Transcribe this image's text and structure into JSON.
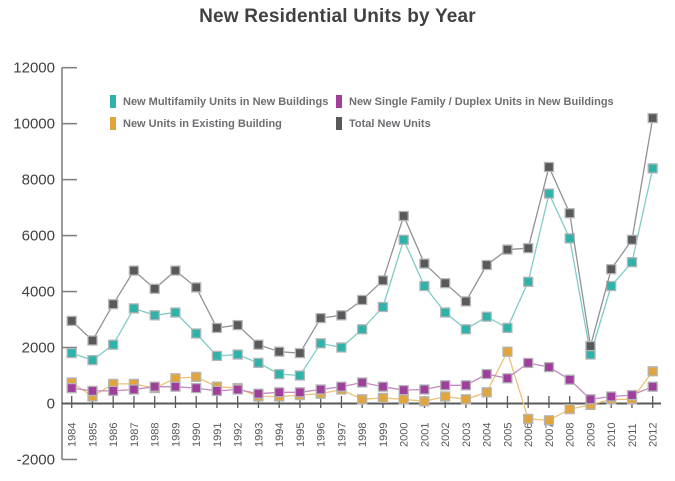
{
  "title": "New Residential Units by Year",
  "chart_data": {
    "type": "line",
    "title": "New Residential Units by Year",
    "xlabel": "",
    "ylabel": "",
    "ylim": [
      -2000,
      12000
    ],
    "y_ticks": [
      12000,
      10000,
      8000,
      6000,
      4000,
      2000,
      0,
      -2000
    ],
    "grid": false,
    "legend_position": "top-inside-two-columns",
    "categories": [
      "1984",
      "1985",
      "1986",
      "1987",
      "1988",
      "1989",
      "1990",
      "1991",
      "1992",
      "1993",
      "1994",
      "1995",
      "1996",
      "1997",
      "1998",
      "1999",
      "2000",
      "2001",
      "2002",
      "2003",
      "2004",
      "2005",
      "2006",
      "2007",
      "2008",
      "2009",
      "2010",
      "2011",
      "2012"
    ],
    "series": [
      {
        "name": "New Multifamily Units in New Buildings",
        "marker_color": "#2db3aa",
        "line_color": "#7fccc7",
        "values": [
          1800,
          1550,
          2100,
          3400,
          3150,
          3250,
          2500,
          1700,
          1750,
          1450,
          1050,
          1000,
          2150,
          2000,
          2650,
          3450,
          5850,
          4200,
          3250,
          2650,
          3100,
          2700,
          4350,
          7500,
          5900,
          1750,
          4200,
          5050,
          8400
        ]
      },
      {
        "name": "New Single Family / Duplex Units in New Buildings",
        "marker_color": "#a03f9b",
        "line_color": "#c489bf",
        "values": [
          550,
          450,
          450,
          500,
          600,
          600,
          550,
          450,
          500,
          350,
          400,
          400,
          500,
          600,
          750,
          600,
          480,
          500,
          650,
          650,
          1050,
          900,
          1450,
          1300,
          850,
          150,
          250,
          300,
          600
        ]
      },
      {
        "name": "New Units in Existing Building",
        "marker_color": "#e2a53c",
        "line_color": "#eec277",
        "values": [
          750,
          250,
          700,
          700,
          550,
          900,
          950,
          600,
          550,
          250,
          250,
          300,
          350,
          500,
          150,
          200,
          150,
          80,
          250,
          150,
          400,
          1850,
          -550,
          -600,
          -200,
          -50,
          150,
          150,
          1150
        ]
      },
      {
        "name": "Total New Units",
        "marker_color": "#58595b",
        "line_color": "#909295",
        "values": [
          2950,
          2250,
          3550,
          4750,
          4100,
          4750,
          4150,
          2700,
          2800,
          2100,
          1850,
          1800,
          3050,
          3150,
          3700,
          4400,
          6700,
          5000,
          4300,
          3650,
          4950,
          5500,
          5550,
          8450,
          6800,
          2050,
          4800,
          5850,
          10200
        ]
      }
    ],
    "draw_order": [
      2,
      1,
      0,
      3
    ],
    "axis_color": "#808285",
    "baseline_color": "#58595b"
  },
  "legend": {
    "items": [
      {
        "series": 0
      },
      {
        "series": 1
      },
      {
        "series": 2
      },
      {
        "series": 3
      }
    ]
  }
}
